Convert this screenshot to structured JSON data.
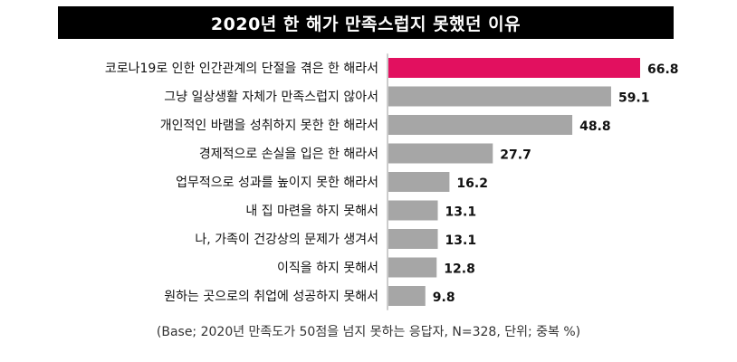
{
  "chart_data": {
    "type": "bar",
    "orientation": "horizontal",
    "title": "2020년 한 해가 만족스럽지 못했던 이유",
    "categories": [
      "코로나19로 인한 인간관계의 단절을 겪은 한 해라서",
      "그냥 일상생활 자체가 만족스럽지 않아서",
      "개인적인 바램을 성취하지 못한 한 해라서",
      "경제적으로 손실을 입은 한 해라서",
      "업무적으로 성과를 높이지 못한 해라서",
      "내 집 마련을 하지 못해서",
      "나, 가족이 건강상의 문제가 생겨서",
      "이직을 하지 못해서",
      "원하는 곳으로의 취업에 성공하지 못해서"
    ],
    "values": [
      66.8,
      59.1,
      48.8,
      27.7,
      16.2,
      13.1,
      13.1,
      12.8,
      9.8
    ],
    "value_labels": [
      "66.8",
      "59.1",
      "48.8",
      "27.7",
      "16.2",
      "13.1",
      "13.1",
      "12.8",
      "9.8"
    ],
    "highlight_index": 0,
    "xlim": [
      0,
      70
    ],
    "grid": false,
    "footnote": "(Base; 2020년 만족도가 50점을 넘지 못하는 응답자, N=328, 단위; 중복 %)",
    "colors": {
      "highlight": "#e2105f",
      "bar": "#a6a6a6",
      "title_bg": "#000000",
      "title_text": "#ffffff"
    }
  }
}
